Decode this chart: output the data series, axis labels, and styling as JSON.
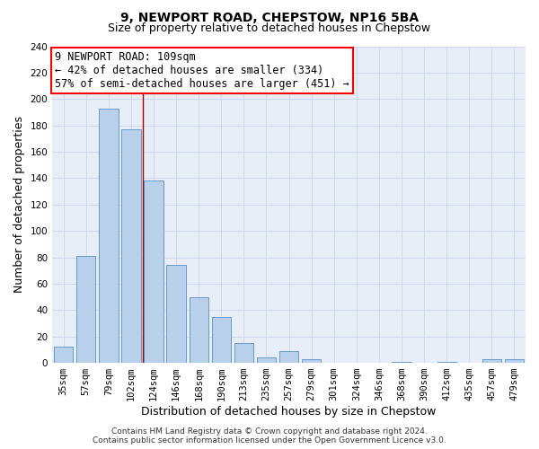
{
  "title": "9, NEWPORT ROAD, CHEPSTOW, NP16 5BA",
  "subtitle": "Size of property relative to detached houses in Chepstow",
  "xlabel": "Distribution of detached houses by size in Chepstow",
  "ylabel": "Number of detached properties",
  "bar_labels": [
    "35sqm",
    "57sqm",
    "79sqm",
    "102sqm",
    "124sqm",
    "146sqm",
    "168sqm",
    "190sqm",
    "213sqm",
    "235sqm",
    "257sqm",
    "279sqm",
    "301sqm",
    "324sqm",
    "346sqm",
    "368sqm",
    "390sqm",
    "412sqm",
    "435sqm",
    "457sqm",
    "479sqm"
  ],
  "bar_heights": [
    12,
    81,
    193,
    177,
    138,
    74,
    50,
    35,
    15,
    4,
    9,
    3,
    0,
    0,
    0,
    1,
    0,
    1,
    0,
    3,
    3
  ],
  "bar_color": "#b8d0ea",
  "bar_edge_color": "#6699cc",
  "vline_x": 3.5,
  "vline_color": "#aa0000",
  "annotation_lines": [
    "9 NEWPORT ROAD: 109sqm",
    "← 42% of detached houses are smaller (334)",
    "57% of semi-detached houses are larger (451) →"
  ],
  "ylim": [
    0,
    240
  ],
  "yticks": [
    0,
    20,
    40,
    60,
    80,
    100,
    120,
    140,
    160,
    180,
    200,
    220,
    240
  ],
  "footer_lines": [
    "Contains HM Land Registry data © Crown copyright and database right 2024.",
    "Contains public sector information licensed under the Open Government Licence v3.0."
  ],
  "title_fontsize": 10,
  "subtitle_fontsize": 9,
  "axis_label_fontsize": 9,
  "tick_fontsize": 7.5,
  "annotation_fontsize": 8.5,
  "footer_fontsize": 6.5,
  "bg_color": "#e8eef8"
}
